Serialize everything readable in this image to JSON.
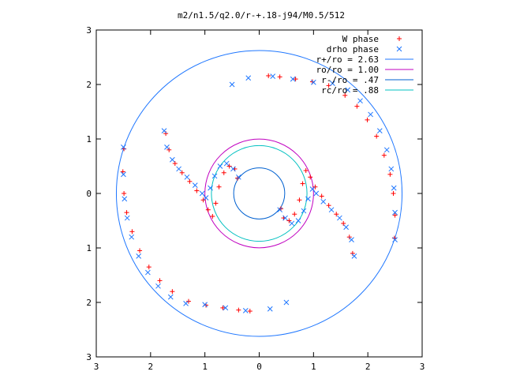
{
  "chart_data": {
    "type": "scatter",
    "title": "m2/n1.5/q2.0/r-+.18-j94/M0.5/512",
    "xlabel": "",
    "ylabel": "",
    "xlim": [
      -3,
      3
    ],
    "ylim": [
      -3,
      3
    ],
    "grid": false,
    "legend_position": "top-right",
    "x_tick_labels": [
      "3",
      "2",
      "1",
      "0",
      "1",
      "2",
      "3"
    ],
    "y_tick_labels": [
      "3",
      "2",
      "1",
      "0",
      "1",
      "2",
      "3"
    ],
    "series": [
      {
        "name": "W phase",
        "marker": "plus",
        "color": "#ff0000",
        "x": [
          -2.49,
          -2.51,
          -2.49,
          -2.44,
          -2.34,
          -2.2,
          -2.03,
          -1.83,
          -1.6,
          -1.3,
          -0.98,
          -0.67,
          -0.38,
          -0.17,
          2.49,
          2.5,
          2.47,
          2.41,
          2.3,
          2.16,
          1.99,
          1.8,
          1.58,
          1.28,
          0.98,
          0.67,
          0.38,
          0.17,
          -1.72,
          -1.66,
          -1.55,
          -1.42,
          -1.28,
          -1.15,
          -1.03,
          -0.94,
          -0.86,
          -0.8,
          -0.74,
          -0.65,
          -0.55,
          -0.45,
          -0.4,
          1.72,
          1.66,
          1.55,
          1.42,
          1.28,
          1.15,
          1.03,
          0.94,
          0.86,
          0.8,
          0.74,
          0.65,
          0.55,
          0.45,
          0.4
        ],
        "y": [
          0.82,
          0.4,
          0.0,
          -0.35,
          -0.7,
          -1.05,
          -1.35,
          -1.6,
          -1.8,
          -1.98,
          -2.05,
          -2.1,
          -2.14,
          -2.16,
          -0.82,
          -0.4,
          0.0,
          0.35,
          0.7,
          1.05,
          1.35,
          1.6,
          1.8,
          1.98,
          2.05,
          2.1,
          2.14,
          2.16,
          1.1,
          0.8,
          0.55,
          0.38,
          0.22,
          0.05,
          -0.12,
          -0.3,
          -0.42,
          -0.18,
          0.12,
          0.38,
          0.5,
          0.45,
          0.28,
          -1.1,
          -0.8,
          -0.55,
          -0.38,
          -0.22,
          -0.05,
          0.12,
          0.3,
          0.42,
          0.18,
          -0.12,
          -0.38,
          -0.5,
          -0.45,
          -0.28
        ]
      },
      {
        "name": "drho phase",
        "marker": "cross",
        "color": "#1f77ff",
        "x": [
          -2.5,
          -2.5,
          -2.48,
          -2.43,
          -2.35,
          -2.22,
          -2.05,
          -1.86,
          -1.63,
          -1.35,
          -1.0,
          -0.62,
          -0.25,
          0.2,
          0.5,
          2.5,
          2.5,
          2.48,
          2.43,
          2.35,
          2.22,
          2.05,
          1.86,
          1.63,
          1.35,
          1.0,
          0.62,
          0.25,
          -0.2,
          -0.5,
          -1.75,
          -1.7,
          -1.6,
          -1.48,
          -1.33,
          -1.18,
          -1.05,
          -0.98,
          -0.9,
          -0.82,
          -0.72,
          -0.6,
          -0.48,
          -0.38,
          1.75,
          1.7,
          1.6,
          1.48,
          1.33,
          1.18,
          1.05,
          0.98,
          0.9,
          0.82,
          0.72,
          0.6,
          0.48,
          0.38
        ],
        "y": [
          0.85,
          0.35,
          -0.1,
          -0.45,
          -0.8,
          -1.15,
          -1.45,
          -1.7,
          -1.9,
          -2.02,
          -2.04,
          -2.1,
          -2.15,
          -2.12,
          -2.0,
          -0.85,
          -0.35,
          0.1,
          0.45,
          0.8,
          1.15,
          1.45,
          1.7,
          1.9,
          2.02,
          2.04,
          2.1,
          2.15,
          2.12,
          2.0,
          1.15,
          0.85,
          0.62,
          0.45,
          0.3,
          0.15,
          0.0,
          -0.08,
          0.1,
          0.32,
          0.5,
          0.55,
          0.45,
          0.3,
          -1.15,
          -0.85,
          -0.62,
          -0.45,
          -0.3,
          -0.15,
          0.0,
          0.08,
          -0.1,
          -0.32,
          -0.5,
          -0.55,
          -0.45,
          -0.3
        ]
      }
    ],
    "circles": [
      {
        "label": "r+/ro = 2.63",
        "radius": 2.63,
        "color": "#1f77ff"
      },
      {
        "label": "ro/ro = 1.00",
        "radius": 1.0,
        "color": "#c000c0"
      },
      {
        "label": "r-/ro = .47",
        "radius": 0.47,
        "color": "#0060d0"
      },
      {
        "label": "rc/ro = .88",
        "radius": 0.88,
        "color": "#00c0c0"
      }
    ]
  }
}
